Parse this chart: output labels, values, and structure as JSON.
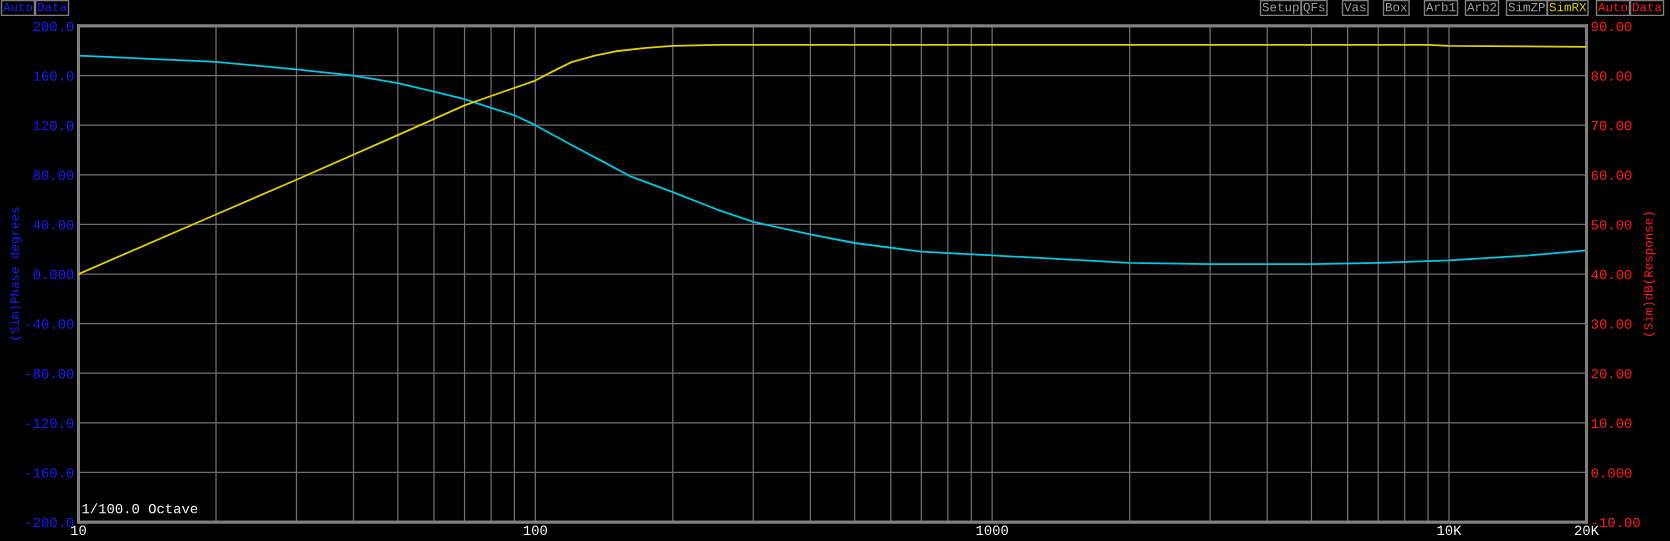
{
  "chart_data": {
    "type": "line",
    "ylabel": "(Sim)Phase degrees",
    "y2label": "(Sim)dB(Response)",
    "annotations": [
      "1/100.0 Octave",
      "Auto",
      "Data",
      "Setup",
      "QFs",
      "Vas",
      "Box",
      "Arb1",
      "Arb2",
      "SimZP",
      "SimRX",
      "Auto",
      "Data"
    ],
    "log": "x",
    "grid": true,
    "xlim": [
      10,
      20000
    ],
    "xticks": [
      10,
      {
        "value": 20,
        "label": null
      },
      {
        "value": 30,
        "label": null
      },
      {
        "value": 40,
        "label": null
      },
      {
        "value": 50,
        "label": null
      },
      {
        "value": 60,
        "label": null
      },
      {
        "value": 70,
        "label": null
      },
      {
        "value": 80,
        "label": null
      },
      {
        "value": 90,
        "label": null
      },
      100,
      {
        "value": 200,
        "label": null
      },
      {
        "value": 300,
        "label": null
      },
      {
        "value": 400,
        "label": null
      },
      {
        "value": 500,
        "label": null
      },
      {
        "value": 600,
        "label": null
      },
      {
        "value": 700,
        "label": null
      },
      {
        "value": 800,
        "label": null
      },
      {
        "value": 900,
        "label": null
      },
      1000,
      {
        "value": 2000,
        "label": null
      },
      {
        "value": 3000,
        "label": null
      },
      {
        "value": 4000,
        "label": null
      },
      {
        "value": 5000,
        "label": null
      },
      {
        "value": 6000,
        "label": null
      },
      {
        "value": 7000,
        "label": null
      },
      {
        "value": 8000,
        "label": null
      },
      {
        "value": 9000,
        "label": null
      },
      {
        "value": 10000,
        "label": "10K"
      },
      {
        "value": 20000,
        "label": "20K"
      }
    ],
    "ylim": [
      -200,
      200
    ],
    "yticks": [
      {
        "value": 200,
        "label": "200.0"
      },
      {
        "value": 160,
        "label": "160.0"
      },
      {
        "value": 120,
        "label": "120.0"
      },
      {
        "value": 80,
        "label": "80.00"
      },
      {
        "value": 40,
        "label": "40.00"
      },
      {
        "value": 0,
        "label": "0.000"
      },
      {
        "value": -40,
        "label": "-40.00"
      },
      {
        "value": -80,
        "label": "-80.00"
      },
      {
        "value": -120,
        "label": "-120.0"
      },
      {
        "value": -160,
        "label": "-160.0"
      },
      {
        "value": -200,
        "label": "-200.0"
      }
    ],
    "y2lim": [
      -10,
      90
    ],
    "y2ticks": [
      {
        "value": 90,
        "label": "90.00"
      },
      {
        "value": 80,
        "label": "80.00"
      },
      {
        "value": 70,
        "label": "70.00"
      },
      {
        "value": 60,
        "label": "60.00"
      },
      {
        "value": 50,
        "label": "50.00"
      },
      {
        "value": 40,
        "label": "40.00"
      },
      {
        "value": 30,
        "label": "30.00"
      },
      {
        "value": 20,
        "label": "20.00"
      },
      {
        "value": 10,
        "label": "10.00"
      },
      {
        "value": 0,
        "label": "0.000"
      },
      {
        "value": -10,
        "label": "-10.00"
      }
    ],
    "marker": "none",
    "line_style": "solid",
    "series": [
      {
        "color": "#00c8e0",
        "x": [
          10,
          20,
          30,
          40,
          50,
          60,
          70,
          80,
          90,
          100,
          120,
          140,
          161,
          200,
          250,
          300,
          400,
          500,
          700,
          1000,
          2000,
          3000,
          5000,
          7000,
          10000,
          15000,
          20000
        ],
        "values": [
          176,
          171,
          165,
          160,
          154,
          147,
          141,
          134,
          128,
          120,
          104,
          91,
          79,
          66,
          52,
          42,
          32,
          25,
          18,
          15,
          9,
          8,
          8,
          9,
          11,
          15,
          19
        ]
      },
      {
        "color": "#e0d000",
        "axis": "y2",
        "x": [
          10,
          20,
          30,
          50,
          70,
          100,
          110,
          120,
          135,
          150,
          175,
          200,
          250,
          1000,
          9000,
          10000,
          20000
        ],
        "values": [
          40,
          52,
          59,
          68,
          74,
          79,
          81,
          82.7,
          84,
          84.9,
          85.6,
          86,
          86.2,
          86.2,
          86.2,
          86.0,
          85.8
        ]
      }
    ]
  }
}
